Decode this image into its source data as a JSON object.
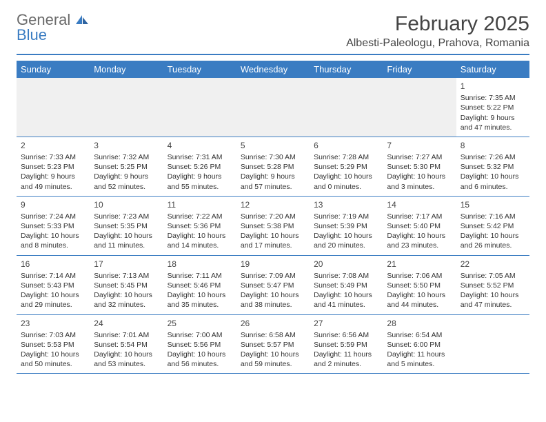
{
  "branding": {
    "logo_line1": "General",
    "logo_line2": "Blue",
    "logo_color_main": "#6b6b6b",
    "logo_color_accent": "#3a7cc2"
  },
  "header": {
    "month_title": "February 2025",
    "location": "Albesti-Paleologu, Prahova, Romania"
  },
  "colors": {
    "header_bg": "#3a7cc2",
    "header_text": "#ffffff",
    "divider": "#3a7cc2",
    "body_text": "#333333",
    "background": "#ffffff",
    "empty_row_bg": "#f0f0f0"
  },
  "typography": {
    "month_title_fontsize": 30,
    "location_fontsize": 16,
    "day_header_fontsize": 13,
    "daynum_fontsize": 12,
    "cell_fontsize": 10.5
  },
  "day_labels": [
    "Sunday",
    "Monday",
    "Tuesday",
    "Wednesday",
    "Thursday",
    "Friday",
    "Saturday"
  ],
  "weeks": [
    [
      null,
      null,
      null,
      null,
      null,
      null,
      {
        "day": "1",
        "sunrise": "Sunrise: 7:35 AM",
        "sunset": "Sunset: 5:22 PM",
        "daylight": "Daylight: 9 hours and 47 minutes."
      }
    ],
    [
      {
        "day": "2",
        "sunrise": "Sunrise: 7:33 AM",
        "sunset": "Sunset: 5:23 PM",
        "daylight": "Daylight: 9 hours and 49 minutes."
      },
      {
        "day": "3",
        "sunrise": "Sunrise: 7:32 AM",
        "sunset": "Sunset: 5:25 PM",
        "daylight": "Daylight: 9 hours and 52 minutes."
      },
      {
        "day": "4",
        "sunrise": "Sunrise: 7:31 AM",
        "sunset": "Sunset: 5:26 PM",
        "daylight": "Daylight: 9 hours and 55 minutes."
      },
      {
        "day": "5",
        "sunrise": "Sunrise: 7:30 AM",
        "sunset": "Sunset: 5:28 PM",
        "daylight": "Daylight: 9 hours and 57 minutes."
      },
      {
        "day": "6",
        "sunrise": "Sunrise: 7:28 AM",
        "sunset": "Sunset: 5:29 PM",
        "daylight": "Daylight: 10 hours and 0 minutes."
      },
      {
        "day": "7",
        "sunrise": "Sunrise: 7:27 AM",
        "sunset": "Sunset: 5:30 PM",
        "daylight": "Daylight: 10 hours and 3 minutes."
      },
      {
        "day": "8",
        "sunrise": "Sunrise: 7:26 AM",
        "sunset": "Sunset: 5:32 PM",
        "daylight": "Daylight: 10 hours and 6 minutes."
      }
    ],
    [
      {
        "day": "9",
        "sunrise": "Sunrise: 7:24 AM",
        "sunset": "Sunset: 5:33 PM",
        "daylight": "Daylight: 10 hours and 8 minutes."
      },
      {
        "day": "10",
        "sunrise": "Sunrise: 7:23 AM",
        "sunset": "Sunset: 5:35 PM",
        "daylight": "Daylight: 10 hours and 11 minutes."
      },
      {
        "day": "11",
        "sunrise": "Sunrise: 7:22 AM",
        "sunset": "Sunset: 5:36 PM",
        "daylight": "Daylight: 10 hours and 14 minutes."
      },
      {
        "day": "12",
        "sunrise": "Sunrise: 7:20 AM",
        "sunset": "Sunset: 5:38 PM",
        "daylight": "Daylight: 10 hours and 17 minutes."
      },
      {
        "day": "13",
        "sunrise": "Sunrise: 7:19 AM",
        "sunset": "Sunset: 5:39 PM",
        "daylight": "Daylight: 10 hours and 20 minutes."
      },
      {
        "day": "14",
        "sunrise": "Sunrise: 7:17 AM",
        "sunset": "Sunset: 5:40 PM",
        "daylight": "Daylight: 10 hours and 23 minutes."
      },
      {
        "day": "15",
        "sunrise": "Sunrise: 7:16 AM",
        "sunset": "Sunset: 5:42 PM",
        "daylight": "Daylight: 10 hours and 26 minutes."
      }
    ],
    [
      {
        "day": "16",
        "sunrise": "Sunrise: 7:14 AM",
        "sunset": "Sunset: 5:43 PM",
        "daylight": "Daylight: 10 hours and 29 minutes."
      },
      {
        "day": "17",
        "sunrise": "Sunrise: 7:13 AM",
        "sunset": "Sunset: 5:45 PM",
        "daylight": "Daylight: 10 hours and 32 minutes."
      },
      {
        "day": "18",
        "sunrise": "Sunrise: 7:11 AM",
        "sunset": "Sunset: 5:46 PM",
        "daylight": "Daylight: 10 hours and 35 minutes."
      },
      {
        "day": "19",
        "sunrise": "Sunrise: 7:09 AM",
        "sunset": "Sunset: 5:47 PM",
        "daylight": "Daylight: 10 hours and 38 minutes."
      },
      {
        "day": "20",
        "sunrise": "Sunrise: 7:08 AM",
        "sunset": "Sunset: 5:49 PM",
        "daylight": "Daylight: 10 hours and 41 minutes."
      },
      {
        "day": "21",
        "sunrise": "Sunrise: 7:06 AM",
        "sunset": "Sunset: 5:50 PM",
        "daylight": "Daylight: 10 hours and 44 minutes."
      },
      {
        "day": "22",
        "sunrise": "Sunrise: 7:05 AM",
        "sunset": "Sunset: 5:52 PM",
        "daylight": "Daylight: 10 hours and 47 minutes."
      }
    ],
    [
      {
        "day": "23",
        "sunrise": "Sunrise: 7:03 AM",
        "sunset": "Sunset: 5:53 PM",
        "daylight": "Daylight: 10 hours and 50 minutes."
      },
      {
        "day": "24",
        "sunrise": "Sunrise: 7:01 AM",
        "sunset": "Sunset: 5:54 PM",
        "daylight": "Daylight: 10 hours and 53 minutes."
      },
      {
        "day": "25",
        "sunrise": "Sunrise: 7:00 AM",
        "sunset": "Sunset: 5:56 PM",
        "daylight": "Daylight: 10 hours and 56 minutes."
      },
      {
        "day": "26",
        "sunrise": "Sunrise: 6:58 AM",
        "sunset": "Sunset: 5:57 PM",
        "daylight": "Daylight: 10 hours and 59 minutes."
      },
      {
        "day": "27",
        "sunrise": "Sunrise: 6:56 AM",
        "sunset": "Sunset: 5:59 PM",
        "daylight": "Daylight: 11 hours and 2 minutes."
      },
      {
        "day": "28",
        "sunrise": "Sunrise: 6:54 AM",
        "sunset": "Sunset: 6:00 PM",
        "daylight": "Daylight: 11 hours and 5 minutes."
      },
      null
    ]
  ]
}
